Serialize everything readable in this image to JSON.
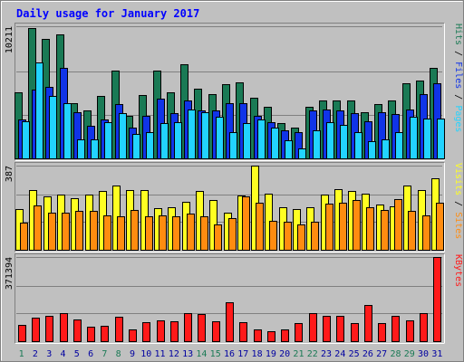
{
  "colors": {
    "background": "#c0c0c0",
    "panel": "#c0c0c0",
    "gridline": "#808080",
    "title": "#0000ff",
    "hits": "#1a7a55",
    "files": "#1034e8",
    "pages": "#22d3ff",
    "visits": "#ffff22",
    "sites": "#ff8c10",
    "kbytes": "#ff1a1a",
    "weekday_text": "#0000a0",
    "weekend_text": "#1a7a55"
  },
  "chart_data": {
    "type": "bar",
    "title": "Daily usage for January 2017",
    "days": [
      "1",
      "2",
      "3",
      "4",
      "5",
      "6",
      "7",
      "8",
      "9",
      "10",
      "11",
      "12",
      "13",
      "14",
      "15",
      "16",
      "17",
      "18",
      "19",
      "20",
      "21",
      "22",
      "23",
      "24",
      "25",
      "26",
      "27",
      "28",
      "29",
      "30",
      "31"
    ],
    "weekend_days": [
      "1",
      "7",
      "8",
      "14",
      "15",
      "21",
      "22",
      "28",
      "29"
    ],
    "panels": [
      {
        "id": "hits-files-pages",
        "ymax_label": "10211",
        "ylim": [
          0,
          10211
        ],
        "legend": [
          {
            "name": "Pages",
            "color_key": "pages"
          },
          {
            "name": "Files",
            "color_key": "files"
          },
          {
            "name": "Hits",
            "color_key": "hits"
          }
        ],
        "separator": " / ",
        "series": [
          {
            "name": "Hits",
            "color_key": "hits",
            "values": [
              5100,
              10100,
              9200,
              9600,
              4300,
              3700,
              4800,
              6800,
              3300,
              4900,
              6800,
              5100,
              7300,
              5400,
              5000,
              5700,
              5900,
              4700,
              4000,
              2700,
              2400,
              4000,
              4500,
              4500,
              4500,
              3600,
              4200,
              4500,
              5800,
              6000,
              7000
            ]
          },
          {
            "name": "Files",
            "color_key": "files",
            "values": [
              3000,
              5300,
              5500,
              7000,
              3600,
              2500,
              3000,
              4200,
              2400,
              3300,
              4600,
              3500,
              4500,
              3700,
              3700,
              4300,
              4300,
              3300,
              2800,
              2200,
              2000,
              3700,
              3800,
              3700,
              3500,
              2900,
              3600,
              3400,
              3800,
              5000,
              5800
            ]
          },
          {
            "name": "Pages",
            "color_key": "pages",
            "values": [
              2900,
              7400,
              4800,
              4300,
              1500,
              1500,
              2800,
              3500,
              1900,
              2000,
              2700,
              2800,
              3800,
              3600,
              3200,
              2000,
              2700,
              3000,
              2400,
              1400,
              800,
              2200,
              2800,
              2600,
              2000,
              1300,
              1500,
              2000,
              3200,
              3100,
              3100
            ]
          }
        ]
      },
      {
        "id": "visits-sites",
        "ymax_label": "387",
        "ylim": [
          0,
          387
        ],
        "legend": [
          {
            "name": "Sites",
            "color_key": "sites"
          },
          {
            "name": "Visits",
            "color_key": "visits"
          }
        ],
        "separator": " / ",
        "series": [
          {
            "name": "Visits",
            "color_key": "visits",
            "values": [
              187,
              275,
              245,
              255,
              238,
              252,
              272,
              295,
              274,
              275,
              193,
              195,
              220,
              270,
              230,
              170,
              250,
              387,
              258,
              196,
              187,
              195,
              255,
              277,
              270,
              260,
              210,
              200,
              295,
              275,
              328
            ]
          },
          {
            "name": "Sites",
            "color_key": "sites",
            "values": [
              125,
              205,
              170,
              172,
              180,
              178,
              157,
              155,
              182,
              155,
              160,
              152,
              165,
              155,
              115,
              145,
              245,
              218,
              135,
              128,
              115,
              130,
              212,
              218,
              230,
              195,
              185,
              235,
              180,
              160,
              215
            ]
          }
        ]
      },
      {
        "id": "kbytes",
        "ymax_label": "371394",
        "ylim": [
          0,
          371394
        ],
        "legend": [
          {
            "name": "KBytes",
            "color_key": "kbytes"
          }
        ],
        "separator": "",
        "series": [
          {
            "name": "KBytes",
            "color_key": "kbytes",
            "values": [
              70000,
              105000,
              110000,
              122000,
              96000,
              62000,
              68000,
              109000,
              50000,
              82000,
              90000,
              88000,
              125000,
              121000,
              88000,
              170000,
              83000,
              52000,
              43000,
              50000,
              78000,
              122000,
              112000,
              112000,
              80000,
              160000,
              80000,
              110000,
              92000,
              123000,
              371394
            ]
          }
        ]
      }
    ]
  }
}
